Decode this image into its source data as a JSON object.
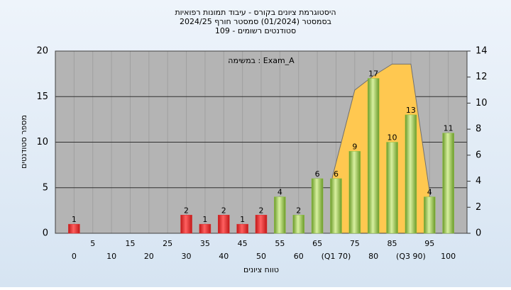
{
  "chart_data": {
    "type": "bar",
    "title": [
      "היסטוגרמת ציונים בקורס - עיבוד תמונות רפואיות",
      "בסמסטר  (01/2024)  סמסטר חורף 2024/25",
      "סטודנטים רשומים - 109"
    ],
    "annotation": "במשימה : Exam_A",
    "x_label": "טווח ציונים",
    "y_label": "מספר סטודנטים",
    "categories": [
      "0",
      "5",
      "10",
      "15",
      "20",
      "25",
      "30",
      "35",
      "40",
      "45",
      "50",
      "55",
      "60",
      "65",
      "(Q1 70)",
      "75",
      "80",
      "85",
      "(Q3 90)",
      "95",
      "100"
    ],
    "values": [
      1,
      0,
      0,
      0,
      0,
      0,
      2,
      1,
      2,
      1,
      2,
      4,
      2,
      6,
      6,
      9,
      17,
      10,
      13,
      4,
      11
    ],
    "value_labels": [
      "1",
      null,
      null,
      null,
      null,
      null,
      "2",
      "1",
      "2",
      "1",
      "2",
      "4",
      "2",
      "6",
      "6",
      "9",
      "17",
      "10",
      "13",
      "4",
      "11"
    ],
    "colors": {
      "fail": "#e03030",
      "pass": "#8cc040"
    },
    "pass_from_index": 11,
    "ylim": [
      0,
      20
    ],
    "yticks": [
      0,
      5,
      10,
      15,
      20
    ],
    "y2lim": [
      0,
      14
    ],
    "y2ticks": [
      0,
      2,
      4,
      6,
      8,
      10,
      12,
      14
    ],
    "quartile_area": {
      "axis": "y2",
      "color": "#ffc850",
      "x": [
        69,
        75,
        80,
        85,
        90,
        95
      ],
      "values": [
        4.3,
        11,
        12.1,
        13,
        13,
        3.2
      ]
    },
    "grid": true
  }
}
